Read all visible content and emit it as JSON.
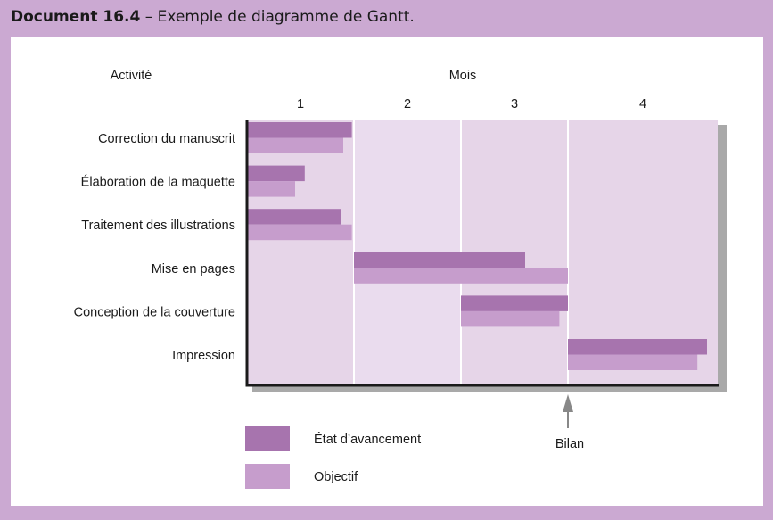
{
  "document": {
    "label": "Document 16.4",
    "separator": " – ",
    "title": "Exemple de diagramme de Gantt."
  },
  "chart_data": {
    "type": "bar",
    "subtype": "gantt",
    "category_header": "Activité",
    "x_header": "Mois",
    "x_ticks": [
      "1",
      "2",
      "3",
      "4"
    ],
    "xlim": [
      0,
      4.4
    ],
    "categories": [
      "Correction du manuscrit",
      "Élaboration de la maquette",
      "Traitement des illustrations",
      "Mise en pages",
      "Conception de la couverture",
      "Impression"
    ],
    "series": [
      {
        "name": "État d’avancement",
        "color": "#a774ae",
        "tasks": [
          [
            0,
            0.98
          ],
          [
            0,
            0.54
          ],
          [
            0,
            0.88
          ],
          [
            1.0,
            2.6
          ],
          [
            2.0,
            3.0
          ],
          [
            3.0,
            4.3
          ]
        ]
      },
      {
        "name": "Objectif",
        "color": "#c69dcc",
        "tasks": [
          [
            0,
            0.9
          ],
          [
            0,
            0.45
          ],
          [
            0,
            0.98
          ],
          [
            1.0,
            3.0
          ],
          [
            2.0,
            2.92
          ],
          [
            3.0,
            4.21
          ]
        ]
      }
    ],
    "legend": "bottom",
    "annotation": {
      "label": "Bilan",
      "x": 3.0
    },
    "grid": true,
    "colors": {
      "plot_background": "#e6d5e8",
      "month_2_background": "#eadcee",
      "axis": "#1a1a1a",
      "shadow": "#a9a9a9"
    }
  }
}
